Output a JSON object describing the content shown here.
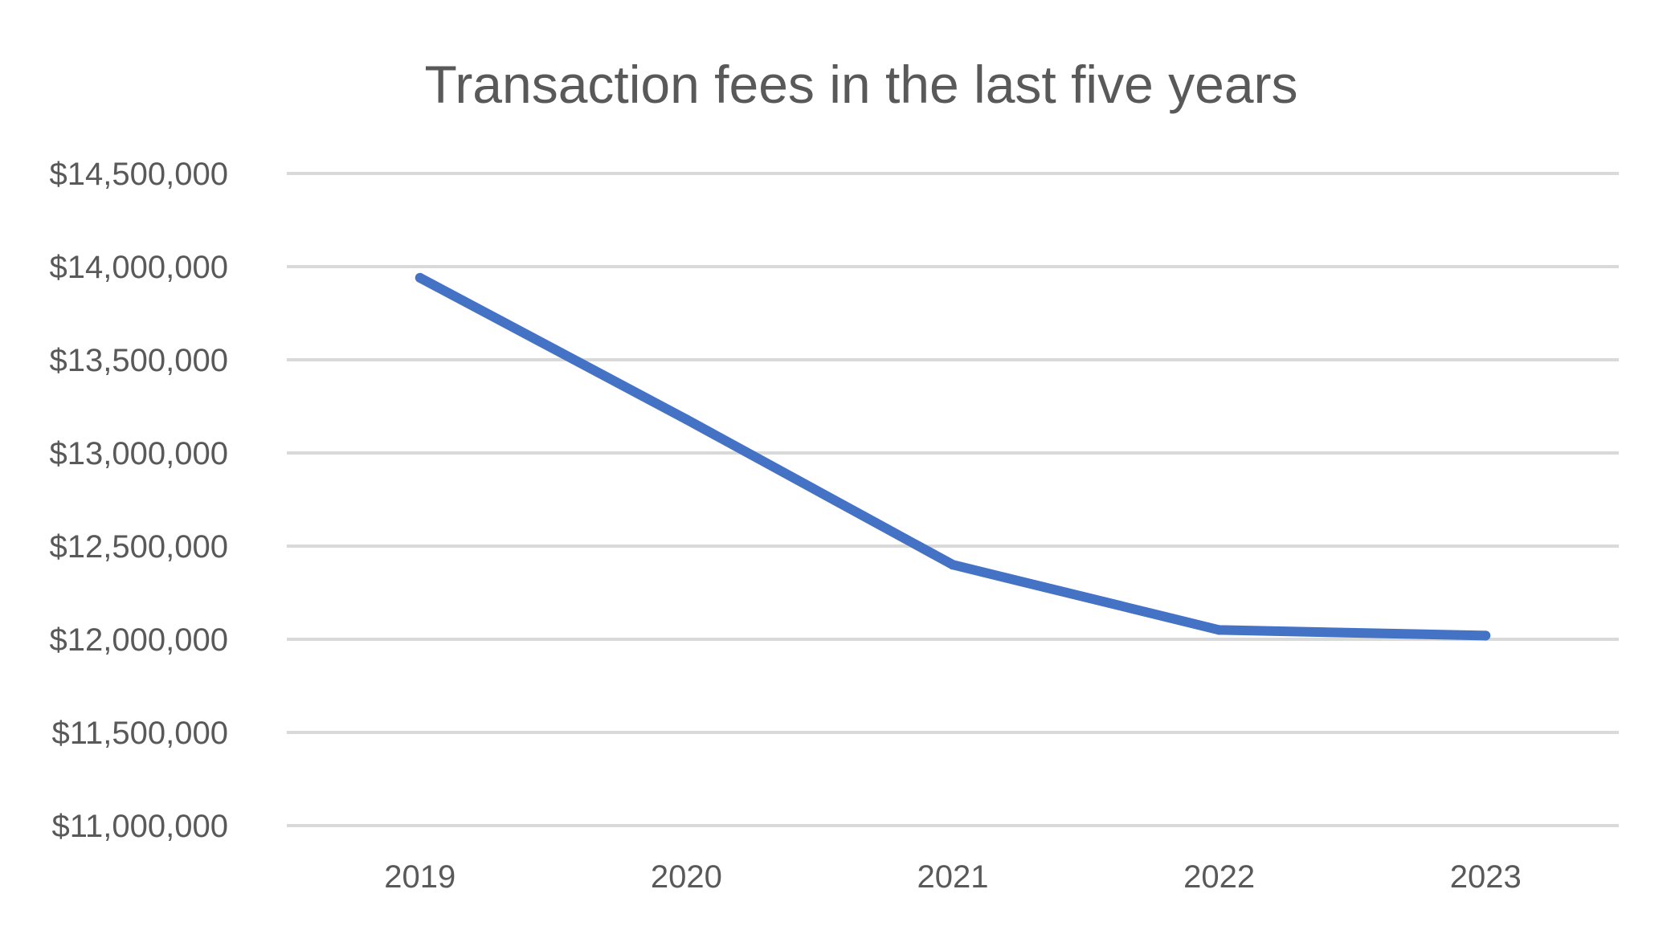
{
  "chart_data": {
    "type": "line",
    "title": "Transaction fees in the last five years",
    "xlabel": "",
    "ylabel": "",
    "categories": [
      "2019",
      "2020",
      "2021",
      "2022",
      "2023"
    ],
    "series": [
      {
        "values": [
          13940000,
          13180000,
          12400000,
          12050000,
          12020000
        ],
        "color": "#4472c4"
      }
    ],
    "ylim": [
      11000000,
      14500000
    ],
    "y_ticks": [
      14500000,
      14000000,
      13500000,
      13000000,
      12500000,
      12000000,
      11500000,
      11000000
    ],
    "y_tick_labels": [
      "$14,500,000",
      "$14,000,000",
      "$13,500,000",
      "$13,000,000",
      "$12,500,000",
      "$12,000,000",
      "$11,500,000",
      "$11,000,000"
    ],
    "grid": true,
    "legend": "none"
  }
}
